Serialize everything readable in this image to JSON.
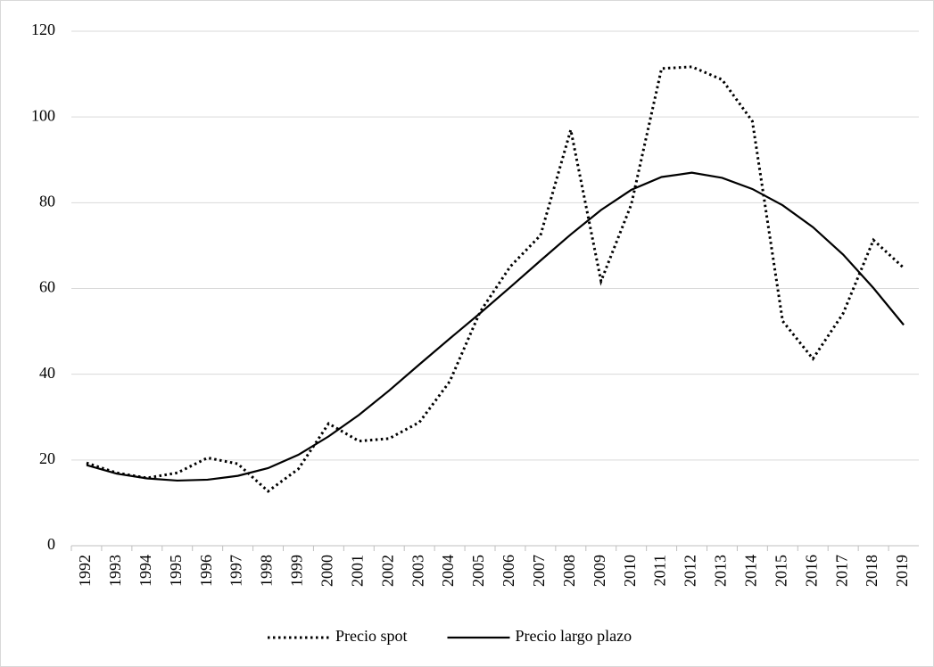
{
  "chart_data": {
    "type": "line",
    "categories": [
      "1992",
      "1993",
      "1994",
      "1995",
      "1996",
      "1997",
      "1998",
      "1999",
      "2000",
      "2001",
      "2002",
      "2003",
      "2004",
      "2005",
      "2006",
      "2007",
      "2008",
      "2009",
      "2010",
      "2011",
      "2012",
      "2013",
      "2014",
      "2015",
      "2016",
      "2017",
      "2018",
      "2019"
    ],
    "series": [
      {
        "name": "Precio spot",
        "color": "#000000",
        "style": "dotted",
        "values": [
          19.3,
          17.0,
          15.8,
          17.0,
          20.5,
          19.1,
          12.7,
          17.9,
          28.5,
          24.4,
          25.0,
          28.8,
          38.3,
          54.5,
          65.1,
          72.4,
          97.0,
          61.7,
          79.6,
          111.3,
          111.7,
          108.7,
          99.0,
          52.4,
          43.6,
          54.2,
          71.3,
          64.8
        ]
      },
      {
        "name": "Precio largo plazo",
        "color": "#000000",
        "style": "solid",
        "values": [
          18.8,
          16.8,
          15.7,
          15.2,
          15.4,
          16.3,
          18.1,
          21.2,
          25.5,
          30.5,
          36.2,
          42.3,
          48.3,
          54.2,
          60.3,
          66.5,
          72.6,
          78.3,
          83.0,
          86.0,
          87.0,
          85.8,
          83.2,
          79.4,
          74.3,
          67.9,
          60.1,
          51.5
        ]
      }
    ],
    "ylim": [
      0,
      120
    ],
    "yticks": [
      0,
      20,
      40,
      60,
      80,
      100,
      120
    ],
    "grid": true,
    "legend": "bottom"
  }
}
